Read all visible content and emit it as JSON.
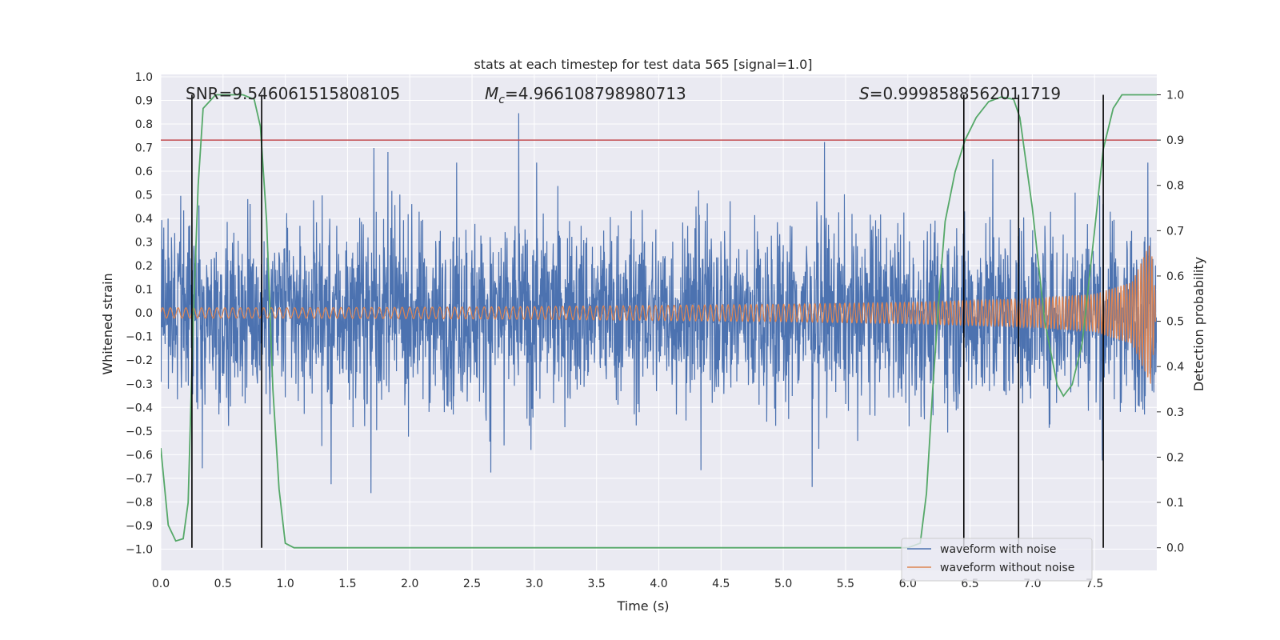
{
  "chart_data": {
    "type": "line",
    "title": "stats at each timestep for test data 565 [signal=1.0]",
    "xlabel": "Time (s)",
    "ylabel_left": "Whitened strain",
    "ylabel_right": "Detection probability",
    "xlim": [
      0.0,
      8.0
    ],
    "ylim_left": [
      -1.09,
      1.01
    ],
    "ylim_right": [
      -0.05,
      1.045
    ],
    "x_ticks": [
      "0.0",
      "0.5",
      "1.0",
      "1.5",
      "2.0",
      "2.5",
      "3.0",
      "3.5",
      "4.0",
      "4.5",
      "5.0",
      "5.5",
      "6.0",
      "6.5",
      "7.0",
      "7.5"
    ],
    "x_tick_values": [
      0.0,
      0.5,
      1.0,
      1.5,
      2.0,
      2.5,
      3.0,
      3.5,
      4.0,
      4.5,
      5.0,
      5.5,
      6.0,
      6.5,
      7.0,
      7.5
    ],
    "y_left_ticks": [
      "1.0",
      "0.9",
      "0.8",
      "0.7",
      "0.6",
      "0.5",
      "0.4",
      "0.3",
      "0.2",
      "0.1",
      "0.0",
      "−0.1",
      "−0.2",
      "−0.3",
      "−0.4",
      "−0.5",
      "−0.6",
      "−0.7",
      "−0.8",
      "−0.9",
      "−1.0"
    ],
    "y_left_tick_values": [
      1.0,
      0.9,
      0.8,
      0.7,
      0.6,
      0.5,
      0.4,
      0.3,
      0.2,
      0.1,
      0.0,
      -0.1,
      -0.2,
      -0.3,
      -0.4,
      -0.5,
      -0.6,
      -0.7,
      -0.8,
      -0.9,
      -1.0
    ],
    "y_right_ticks": [
      "1.0",
      "0.9",
      "0.8",
      "0.7",
      "0.6",
      "0.5",
      "0.4",
      "0.3",
      "0.2",
      "0.1",
      "0.0"
    ],
    "y_right_tick_values": [
      1.0,
      0.9,
      0.8,
      0.7,
      0.6,
      0.5,
      0.4,
      0.3,
      0.2,
      0.1,
      0.0
    ],
    "grid": true,
    "legend_position": "lower-right",
    "annotations": {
      "snr": "SNR=9.546061515808105",
      "mc_symbol": "M",
      "mc_sub": "c",
      "mc_value": "=4.966108798980713",
      "s_symbol": "S",
      "s_value": "=0.9998588562011719"
    },
    "series": [
      {
        "name": "waveform with noise",
        "color": "#4c72b0",
        "axis": "left",
        "envelope": {
          "typical_peak": 0.45,
          "max_peak": 0.92,
          "min_peak": -1.0
        }
      },
      {
        "name": "waveform without noise",
        "color": "#dd8452",
        "axis": "left",
        "envelope_x": [
          0.0,
          1.0,
          2.0,
          3.0,
          4.0,
          5.0,
          6.0,
          7.0,
          7.5,
          7.8,
          7.95,
          8.0
        ],
        "envelope_amp": [
          0.022,
          0.022,
          0.024,
          0.027,
          0.032,
          0.037,
          0.045,
          0.06,
          0.08,
          0.13,
          0.3,
          0.02
        ]
      },
      {
        "name": "detection probability",
        "color": "#55a868",
        "axis": "right",
        "x": [
          0.0,
          0.06,
          0.12,
          0.18,
          0.22,
          0.26,
          0.3,
          0.34,
          0.44,
          0.55,
          0.66,
          0.75,
          0.8,
          0.85,
          0.9,
          0.95,
          1.0,
          1.07,
          6.0,
          6.1,
          6.15,
          6.2,
          6.25,
          6.3,
          6.38,
          6.46,
          6.55,
          6.65,
          6.75,
          6.85,
          6.9,
          7.0,
          7.1,
          7.2,
          7.25,
          7.32,
          7.4,
          7.5,
          7.57,
          7.65,
          7.72,
          8.0
        ],
        "values": [
          0.22,
          0.05,
          0.015,
          0.02,
          0.1,
          0.5,
          0.8,
          0.97,
          1.0,
          1.0,
          1.0,
          0.99,
          0.93,
          0.72,
          0.35,
          0.13,
          0.01,
          0.0,
          0.0,
          0.01,
          0.12,
          0.35,
          0.55,
          0.72,
          0.83,
          0.9,
          0.95,
          0.985,
          0.995,
          0.99,
          0.95,
          0.75,
          0.5,
          0.36,
          0.335,
          0.36,
          0.45,
          0.7,
          0.88,
          0.97,
          1.0,
          1.0
        ]
      }
    ],
    "threshold": {
      "value": 0.9,
      "axis": "right",
      "color": "#c44e52"
    },
    "vertical_markers": {
      "color": "#000000",
      "x": [
        0.25,
        0.81,
        6.45,
        6.89,
        7.57
      ],
      "y_top_right": 1.0
    }
  }
}
